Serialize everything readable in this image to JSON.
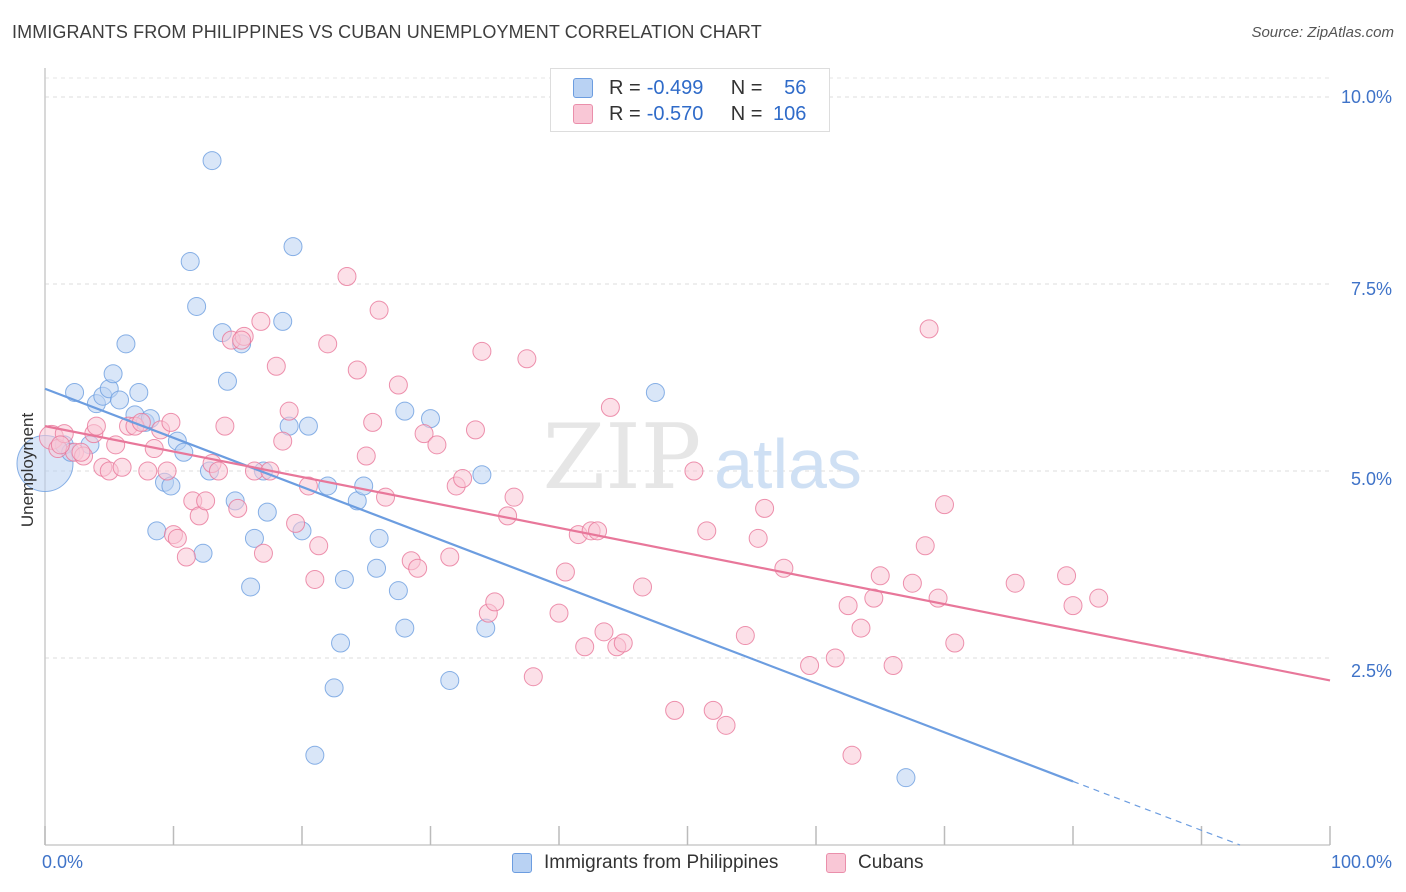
{
  "title": "IMMIGRANTS FROM PHILIPPINES VS CUBAN UNEMPLOYMENT CORRELATION CHART",
  "source": "Source: ZipAtlas.com",
  "watermark": {
    "zip": "ZIP",
    "atlas": "atlas"
  },
  "legend_top": {
    "rows": [
      {
        "r_label": "R =",
        "r_value": "-0.499",
        "n_label": "N =",
        "n_value": "56",
        "color": "#b9d2f3",
        "border": "#6c9de0"
      },
      {
        "r_label": "R =",
        "r_value": "-0.570",
        "n_label": "N =",
        "n_value": "106",
        "color": "#f9c7d6",
        "border": "#ea8fab"
      }
    ]
  },
  "legend_bottom": [
    {
      "label": "Immigrants from Philippines",
      "color": "#b9d2f3",
      "border": "#6c9de0"
    },
    {
      "label": "Cubans",
      "color": "#f9c7d6",
      "border": "#ea8fab"
    }
  ],
  "chart_data": {
    "type": "scatter",
    "title": "IMMIGRANTS FROM PHILIPPINES VS CUBAN UNEMPLOYMENT CORRELATION CHART",
    "xlabel": "",
    "ylabel": "Unemployment",
    "xlim": [
      0,
      100
    ],
    "ylim": [
      0,
      10.5
    ],
    "x_tick_labels": [
      {
        "value": 0,
        "label": "0.0%"
      },
      {
        "value": 100,
        "label": "100.0%"
      }
    ],
    "y_tick_labels": [
      {
        "value": 2.5,
        "label": "2.5%"
      },
      {
        "value": 5.0,
        "label": "5.0%"
      },
      {
        "value": 7.5,
        "label": "7.5%"
      },
      {
        "value": 10.0,
        "label": "10.0%"
      }
    ],
    "grid": "horizontal-dashed",
    "legend_placement": "top-center",
    "series": [
      {
        "name": "Immigrants from Philippines",
        "color": "#6c9de0",
        "fill": "#b9d2f3",
        "trend": {
          "x0": 0,
          "y0": 6.1,
          "x1": 80,
          "y1": 0.85,
          "dash_to_x": 93,
          "dash_to_y": 0.0
        },
        "points": [
          [
            0,
            5.1,
            28
          ],
          [
            1.5,
            5.35,
            9
          ],
          [
            2,
            5.25,
            9
          ],
          [
            2.3,
            6.05,
            9
          ],
          [
            3.5,
            5.35,
            9
          ],
          [
            4,
            5.9,
            9
          ],
          [
            4.5,
            6.0,
            9
          ],
          [
            5,
            6.1,
            9
          ],
          [
            5.3,
            6.3,
            9
          ],
          [
            5.8,
            5.95,
            9
          ],
          [
            6.3,
            6.7,
            9
          ],
          [
            7,
            5.75,
            9
          ],
          [
            7.3,
            6.05,
            9
          ],
          [
            7.8,
            5.65,
            9
          ],
          [
            8.2,
            5.7,
            9
          ],
          [
            8.7,
            4.2,
            9
          ],
          [
            9.3,
            4.85,
            9
          ],
          [
            9.8,
            4.8,
            9
          ],
          [
            10.3,
            5.4,
            9
          ],
          [
            10.8,
            5.25,
            9
          ],
          [
            11.3,
            7.8,
            9
          ],
          [
            11.8,
            7.2,
            9
          ],
          [
            12.3,
            3.9,
            9
          ],
          [
            12.8,
            5.0,
            9
          ],
          [
            13,
            9.15,
            9
          ],
          [
            13.8,
            6.85,
            9
          ],
          [
            14.2,
            6.2,
            9
          ],
          [
            14.8,
            4.6,
            9
          ],
          [
            15.3,
            6.7,
            9
          ],
          [
            16,
            3.45,
            9
          ],
          [
            16.3,
            4.1,
            9
          ],
          [
            17.3,
            4.45,
            9
          ],
          [
            18.5,
            7.0,
            9
          ],
          [
            19,
            5.6,
            9
          ],
          [
            19.3,
            8.0,
            9
          ],
          [
            20,
            4.2,
            9
          ],
          [
            20.5,
            5.6,
            9
          ],
          [
            21,
            1.2,
            9
          ],
          [
            22,
            4.8,
            9
          ],
          [
            22.5,
            2.1,
            9
          ],
          [
            23,
            2.7,
            9
          ],
          [
            23.3,
            3.55,
            9
          ],
          [
            24.3,
            4.6,
            9
          ],
          [
            24.8,
            4.8,
            9
          ],
          [
            25.8,
            3.7,
            9
          ],
          [
            26,
            4.1,
            9
          ],
          [
            27.5,
            3.4,
            9
          ],
          [
            28,
            2.9,
            9
          ],
          [
            30,
            5.7,
            9
          ],
          [
            31.5,
            2.2,
            9
          ],
          [
            34,
            4.95,
            9
          ],
          [
            34.3,
            2.9,
            9
          ],
          [
            47.5,
            6.05,
            9
          ],
          [
            67,
            0.9,
            9
          ],
          [
            28,
            5.8,
            9
          ],
          [
            17,
            5.0,
            9
          ]
        ]
      },
      {
        "name": "Cubans",
        "color": "#e8779a",
        "fill": "#f9c7d6",
        "trend": {
          "x0": 0,
          "y0": 5.6,
          "x1": 100,
          "y1": 2.2
        },
        "points": [
          [
            0.5,
            5.45,
            12
          ],
          [
            1,
            5.3,
            9
          ],
          [
            1.5,
            5.5,
            9
          ],
          [
            2.3,
            5.25,
            9
          ],
          [
            3,
            5.2,
            9
          ],
          [
            3.8,
            5.5,
            9
          ],
          [
            4,
            5.6,
            9
          ],
          [
            4.5,
            5.05,
            9
          ],
          [
            5,
            5.0,
            9
          ],
          [
            5.5,
            5.35,
            9
          ],
          [
            6,
            5.05,
            9
          ],
          [
            6.5,
            5.6,
            9
          ],
          [
            7,
            5.6,
            9
          ],
          [
            7.5,
            5.65,
            9
          ],
          [
            8,
            5.0,
            9
          ],
          [
            8.5,
            5.3,
            9
          ],
          [
            9,
            5.55,
            9
          ],
          [
            9.5,
            5.0,
            9
          ],
          [
            10,
            4.15,
            9
          ],
          [
            10.3,
            4.1,
            9
          ],
          [
            11,
            3.85,
            9
          ],
          [
            11.5,
            4.6,
            9
          ],
          [
            12,
            4.4,
            9
          ],
          [
            12.5,
            4.6,
            9
          ],
          [
            13,
            5.1,
            9
          ],
          [
            13.5,
            5.0,
            9
          ],
          [
            14,
            5.6,
            9
          ],
          [
            14.5,
            6.75,
            9
          ],
          [
            15,
            4.5,
            9
          ],
          [
            15.5,
            6.8,
            9
          ],
          [
            16.3,
            5.0,
            9
          ],
          [
            16.8,
            7.0,
            9
          ],
          [
            17,
            3.9,
            9
          ],
          [
            17.5,
            5.0,
            9
          ],
          [
            18,
            6.4,
            9
          ],
          [
            18.5,
            5.4,
            9
          ],
          [
            19,
            5.8,
            9
          ],
          [
            19.5,
            4.3,
            9
          ],
          [
            20.5,
            4.8,
            9
          ],
          [
            21,
            3.55,
            9
          ],
          [
            21.3,
            4.0,
            9
          ],
          [
            22,
            6.7,
            9
          ],
          [
            23.5,
            7.6,
            9
          ],
          [
            24.3,
            6.35,
            9
          ],
          [
            25,
            5.2,
            9
          ],
          [
            25.5,
            5.65,
            9
          ],
          [
            26,
            7.15,
            9
          ],
          [
            26.5,
            4.65,
            9
          ],
          [
            27.5,
            6.15,
            9
          ],
          [
            28.5,
            3.8,
            9
          ],
          [
            29,
            3.7,
            9
          ],
          [
            29.5,
            5.5,
            9
          ],
          [
            30.5,
            5.35,
            9
          ],
          [
            31.5,
            3.85,
            9
          ],
          [
            32,
            4.8,
            9
          ],
          [
            32.5,
            4.9,
            9
          ],
          [
            33.5,
            5.55,
            9
          ],
          [
            34,
            6.6,
            9
          ],
          [
            34.5,
            3.1,
            9
          ],
          [
            35,
            3.25,
            9
          ],
          [
            36,
            4.4,
            9
          ],
          [
            36.5,
            4.65,
            9
          ],
          [
            37.5,
            6.5,
            9
          ],
          [
            38,
            2.25,
            9
          ],
          [
            40,
            3.1,
            9
          ],
          [
            40.5,
            3.65,
            9
          ],
          [
            41.5,
            4.15,
            9
          ],
          [
            42,
            2.65,
            9
          ],
          [
            42.5,
            4.2,
            9
          ],
          [
            43,
            4.2,
            9
          ],
          [
            43.5,
            2.85,
            9
          ],
          [
            44,
            5.85,
            9
          ],
          [
            44.5,
            2.65,
            9
          ],
          [
            45,
            2.7,
            9
          ],
          [
            46.5,
            3.45,
            9
          ],
          [
            49,
            1.8,
            9
          ],
          [
            50.5,
            5.0,
            9
          ],
          [
            51.5,
            4.2,
            9
          ],
          [
            52,
            1.8,
            9
          ],
          [
            53,
            1.6,
            9
          ],
          [
            54.5,
            2.8,
            9
          ],
          [
            55.5,
            4.1,
            9
          ],
          [
            56,
            4.5,
            9
          ],
          [
            57.5,
            3.7,
            9
          ],
          [
            59.5,
            2.4,
            9
          ],
          [
            61.5,
            2.5,
            9
          ],
          [
            62.5,
            3.2,
            9
          ],
          [
            62.8,
            1.2,
            9
          ],
          [
            63.5,
            2.9,
            9
          ],
          [
            64.5,
            3.3,
            9
          ],
          [
            65,
            3.6,
            9
          ],
          [
            66,
            2.4,
            9
          ],
          [
            67.5,
            3.5,
            9
          ],
          [
            68.5,
            4.0,
            9
          ],
          [
            68.8,
            6.9,
            9
          ],
          [
            69.5,
            3.3,
            9
          ],
          [
            70,
            4.55,
            9
          ],
          [
            70.8,
            2.7,
            9
          ],
          [
            75.5,
            3.5,
            9
          ],
          [
            79.5,
            3.6,
            9
          ],
          [
            80,
            3.2,
            9
          ],
          [
            82,
            3.3,
            9
          ],
          [
            1.2,
            5.35,
            9
          ],
          [
            2.8,
            5.25,
            9
          ],
          [
            9.8,
            5.65,
            9
          ],
          [
            15.3,
            6.75,
            9
          ]
        ]
      }
    ]
  }
}
